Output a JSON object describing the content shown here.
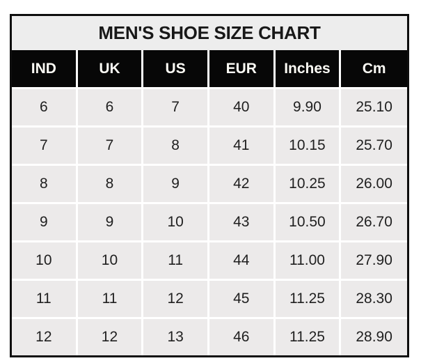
{
  "chart_data": {
    "type": "table",
    "title": "MEN'S SHOE SIZE CHART",
    "columns": [
      "IND",
      "UK",
      "US",
      "EUR",
      "Inches",
      "Cm"
    ],
    "rows": [
      [
        "6",
        "6",
        "7",
        "40",
        "9.90",
        "25.10"
      ],
      [
        "7",
        "7",
        "8",
        "41",
        "10.15",
        "25.70"
      ],
      [
        "8",
        "8",
        "9",
        "42",
        "10.25",
        "26.00"
      ],
      [
        "9",
        "9",
        "10",
        "43",
        "10.50",
        "26.70"
      ],
      [
        "10",
        "10",
        "11",
        "44",
        "11.00",
        "27.90"
      ],
      [
        "11",
        "11",
        "12",
        "45",
        "11.25",
        "28.30"
      ],
      [
        "12",
        "12",
        "13",
        "46",
        "11.25",
        "28.90"
      ]
    ]
  },
  "colors": {
    "page_background": "#ffffff",
    "outer_border": "#0e0e0e",
    "title_bg": "#ededed",
    "header_bg": "#070707",
    "header_text": "#fbfaf4",
    "cell_bg": "#eceaea",
    "grid_line": "#ffffff",
    "body_text": "#1f1f1f"
  }
}
